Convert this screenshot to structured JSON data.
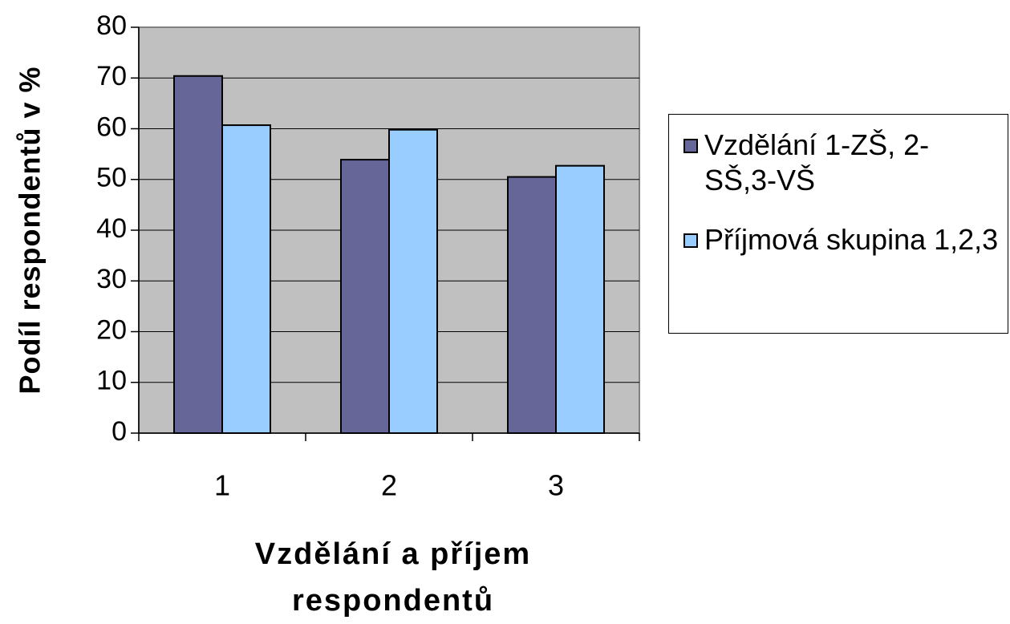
{
  "chart_data": {
    "type": "bar",
    "xlabel": "Vzdělání a příjem respondentů",
    "ylabel": "Podíl respondentů v %",
    "categories": [
      "1",
      "2",
      "3"
    ],
    "series": [
      {
        "name": "Vzdělání 1-ZŠ, 2-SŠ,3-VŠ",
        "color": "#666699",
        "values": [
          70.4,
          53.9,
          50.5
        ]
      },
      {
        "name": "Příjmová skupina 1,2,3",
        "color": "#99ccff",
        "values": [
          60.7,
          59.8,
          52.7
        ]
      }
    ],
    "ylim": [
      0,
      80
    ],
    "yticks": [
      0,
      10,
      20,
      30,
      40,
      50,
      60,
      70,
      80
    ],
    "grid": true,
    "legend": "right"
  }
}
